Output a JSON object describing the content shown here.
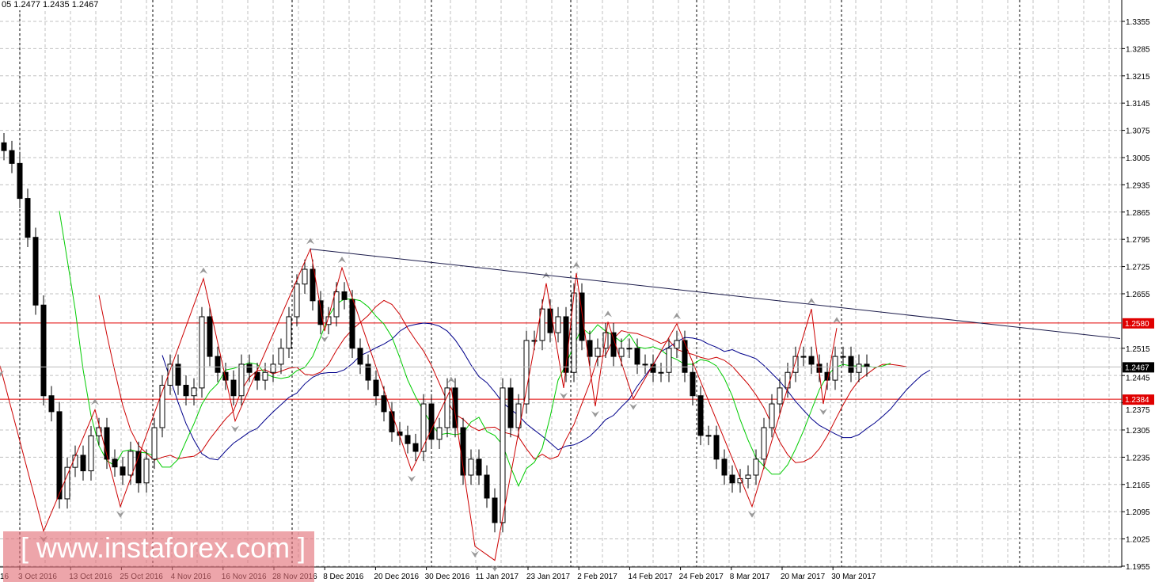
{
  "header": {
    "ohlc_text": "05 1.2477 1.2435 1.2467"
  },
  "watermark": "[ www.instaforex.com ]",
  "chart_data": {
    "type": "candlestick",
    "ylim": [
      1.1955,
      1.339
    ],
    "y_ticks": [
      "1.3355",
      "1.3285",
      "1.3215",
      "1.3145",
      "1.3075",
      "1.3005",
      "1.2935",
      "1.2865",
      "1.2795",
      "1.2725",
      "1.2655",
      "1.2515",
      "1.2445",
      "1.2375",
      "1.2305",
      "1.2235",
      "1.2165",
      "1.2095",
      "1.2025",
      "1.1955"
    ],
    "x_ticks": [
      "3 Oct 2016",
      "13 Oct 2016",
      "25 Oct 2016",
      "4 Nov 2016",
      "16 Nov 2016",
      "28 Nov 2016",
      "8 Dec 2016",
      "20 Dec 2016",
      "30 Dec 2016",
      "11 Jan 2017",
      "23 Jan 2017",
      "2 Feb 2017",
      "14 Feb 2017",
      "24 Feb 2017",
      "8 Mar 2017",
      "20 Mar 2017",
      "30 Mar 2017"
    ],
    "x_tick_first_partial": "16",
    "closes": [
      1.3023,
      1.299,
      1.29,
      1.28,
      1.2626,
      1.2393,
      1.2352,
      1.2128,
      1.2209,
      1.224,
      1.22,
      1.229,
      1.2311,
      1.223,
      1.221,
      1.2189,
      1.225,
      1.2169,
      1.223,
      1.2311,
      1.242,
      1.2474,
      1.242,
      1.2393,
      1.2413,
      1.2596,
      1.2494,
      1.2453,
      1.2433,
      1.2393,
      1.2474,
      1.2453,
      1.2433,
      1.2453,
      1.2474,
      1.2515,
      1.2596,
      1.268,
      1.2718,
      1.2637,
      1.2576,
      1.2596,
      1.266,
      1.264,
      1.2515,
      1.2474,
      1.2433,
      1.2393,
      1.2352,
      1.23,
      1.2291,
      1.227,
      1.225,
      1.2372,
      1.2281,
      1.2311,
      1.2413,
      1.2311,
      1.2189,
      1.223,
      1.2189,
      1.213,
      1.2067,
      1.2413,
      1.2311,
      1.2372,
      1.2535,
      1.2535,
      1.2616,
      1.2555,
      1.2596,
      1.2453,
      1.2657,
      1.2535,
      1.2494,
      1.2515,
      1.2555,
      1.2494,
      1.2515,
      1.2515,
      1.2474,
      1.2474,
      1.2453,
      1.2453,
      1.2515,
      1.2535,
      1.2453,
      1.2393,
      1.2291,
      1.2291,
      1.223,
      1.2189,
      1.2169,
      1.218,
      1.2189,
      1.223,
      1.2311,
      1.2372,
      1.2413,
      1.2453,
      1.2494,
      1.2494,
      1.2474,
      1.2453,
      1.2433,
      1.2494,
      1.2494,
      1.2453,
      1.2474,
      1.2467
    ],
    "current_price": "1.2467",
    "levels": [
      {
        "price": 1.258,
        "label": "1.2580",
        "color": "#e00000"
      },
      {
        "price": 1.2384,
        "label": "1.2384",
        "color": "#e00000"
      }
    ],
    "trendline": {
      "from": [
        38.7,
        1.277
      ],
      "to": [
        141,
        1.254
      ],
      "color": "#1a1a4a"
    },
    "zigzag": [
      [
        -0.5,
        1.247
      ],
      [
        5,
        1.2045
      ],
      [
        11.5,
        1.2357
      ],
      [
        14.7,
        1.2108
      ],
      [
        25.2,
        1.2694
      ],
      [
        29.2,
        1.2328
      ],
      [
        38.7,
        1.277
      ],
      [
        40.5,
        1.2559
      ],
      [
        42.7,
        1.2722
      ],
      [
        51.5,
        1.22
      ],
      [
        56.5,
        1.2413
      ],
      [
        59.5,
        1.2006
      ],
      [
        62,
        1.197
      ],
      [
        68.5,
        1.2682
      ],
      [
        70.7,
        1.2413
      ],
      [
        72.3,
        1.2708
      ],
      [
        74.7,
        1.2366
      ],
      [
        76.3,
        1.2583
      ],
      [
        79.5,
        1.2385
      ],
      [
        85,
        1.2578
      ],
      [
        94.5,
        1.2108
      ],
      [
        102,
        1.2616
      ],
      [
        103.5,
        1.2372
      ],
      [
        105.2,
        1.2567
      ]
    ],
    "ma_colors": {
      "fast": "#00cc00",
      "mid": "#cc0000",
      "slow": "#00008b"
    }
  }
}
